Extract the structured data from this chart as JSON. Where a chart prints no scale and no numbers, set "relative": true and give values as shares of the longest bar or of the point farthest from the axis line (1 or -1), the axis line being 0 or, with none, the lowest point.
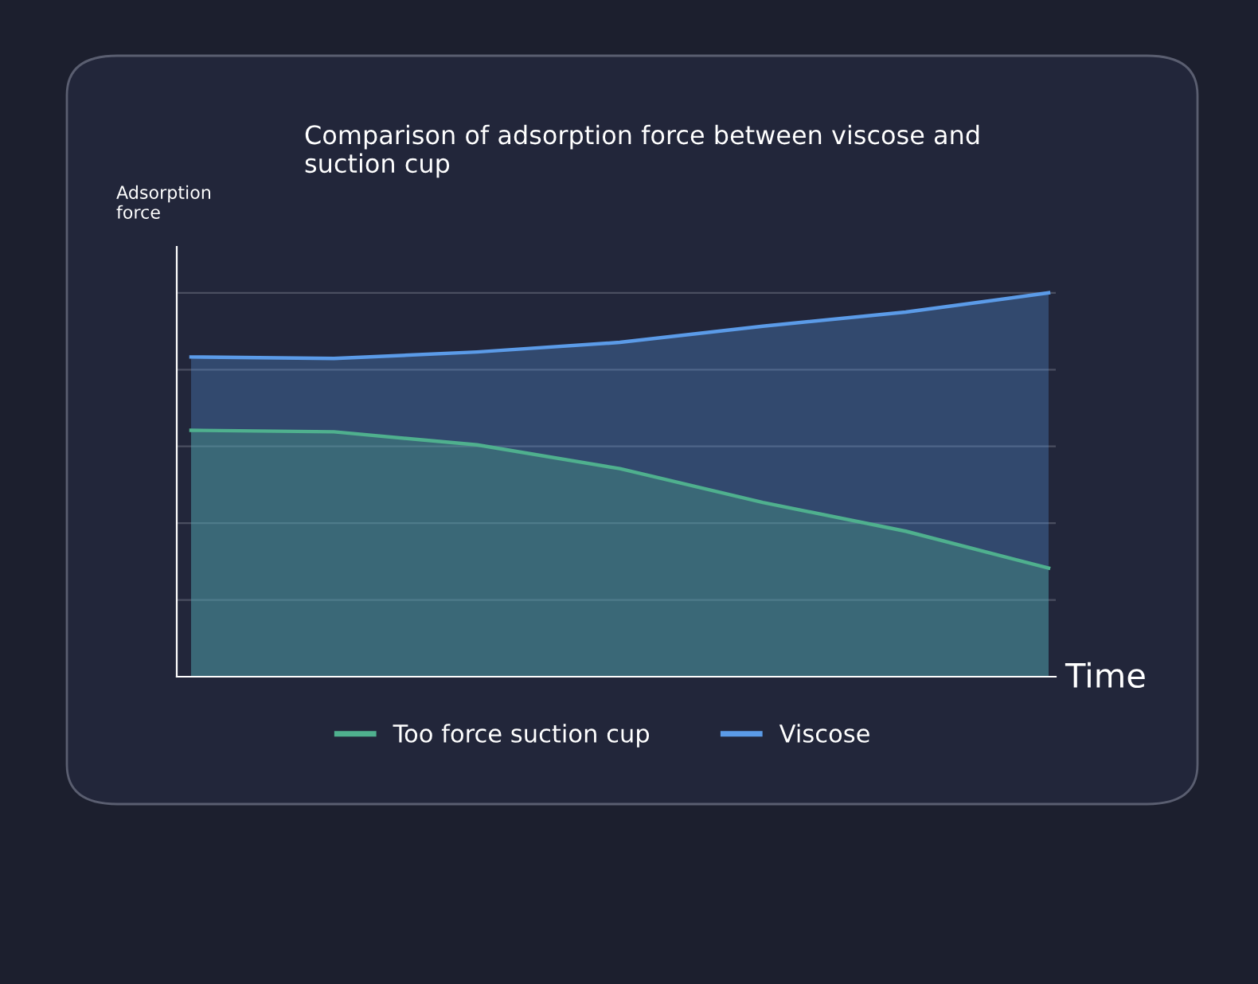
{
  "chart_data": {
    "type": "area",
    "title": "Comparison of adsorption force between viscose and\nsuction cup",
    "ylabel": "Adsorption\nforce",
    "xlabel": "Time",
    "relative": true,
    "categories": [
      null,
      null,
      null,
      null,
      null,
      null,
      null
    ],
    "series": [
      {
        "name": "Viscose",
        "color": "#5b9be8",
        "values": [
          0.833,
          0.829,
          0.846,
          0.871,
          0.913,
          0.95,
          1.0
        ]
      },
      {
        "name": "Too force suction cup",
        "color": "#4fb08e",
        "values": [
          0.642,
          0.638,
          0.604,
          0.542,
          0.454,
          0.379,
          0.283
        ]
      }
    ],
    "grid": "y",
    "legend": "bottom"
  }
}
